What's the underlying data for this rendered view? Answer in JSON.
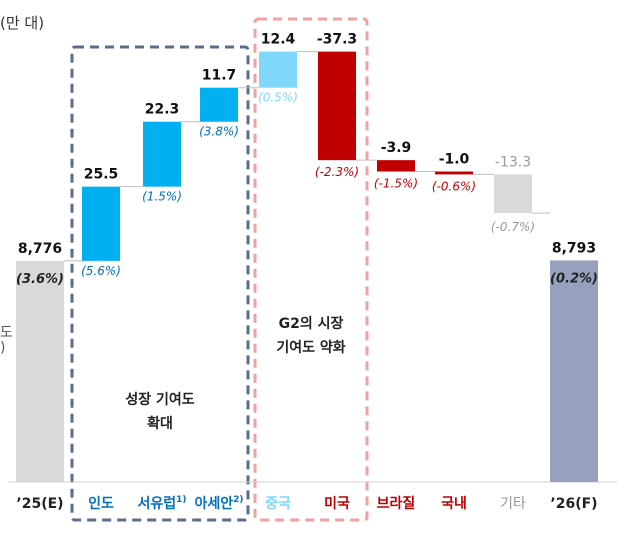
{
  "chart_data": {
    "type": "waterfall",
    "unit_label": "(만 대)",
    "categories": [
      "’25(E)",
      "인도",
      "서유럽1)",
      "아세안2)",
      "중국",
      "미국",
      "브라질",
      "국내",
      "기타",
      "’26(F)"
    ],
    "values": [
      8776,
      25.5,
      22.3,
      11.7,
      12.4,
      -37.3,
      -3.9,
      -1.0,
      -13.3,
      8793
    ],
    "value_labels": [
      "8,776",
      "25.5",
      "22.3",
      "11.7",
      "12.4",
      "-37.3",
      "-3.9",
      "-1.0",
      "-13.3",
      "8,793"
    ],
    "pct_labels": [
      "(3.6%)",
      "(5.6%)",
      "(1.5%)",
      "(3.8%)",
      "(0.5%)",
      "(-2.3%)",
      "(-1.5%)",
      "(-0.6%)",
      "(-0.7%)",
      "(0.2%)"
    ],
    "groups": [
      {
        "label": "성장 기여도 확대",
        "label_lines": [
          "성장 기여도",
          "확대"
        ],
        "members": [
          "인도",
          "서유럽1)",
          "아세안2)"
        ]
      },
      {
        "label": "G2의 시장 기여도 약화",
        "label_lines": [
          "G2의 시장",
          "기여도 약화"
        ],
        "members": [
          "중국",
          "미국"
        ]
      }
    ],
    "edge_glyphs": [
      "도",
      ")"
    ],
    "colors": {
      "total_start": "#d9d9d9",
      "total_end": "#96a2bd",
      "growth": "#00b0f0",
      "china": "#7fd8fb",
      "decline": "#c00000",
      "other": "#d9d9d9",
      "connector": "#bfbfbf",
      "group1_border": "#5a6e8c",
      "group2_border": "#f2a0a0",
      "growth_label": "#0070c0",
      "decline_label": "#c00000",
      "china_label": "#7fd8fb",
      "other_label": "#999999"
    }
  }
}
